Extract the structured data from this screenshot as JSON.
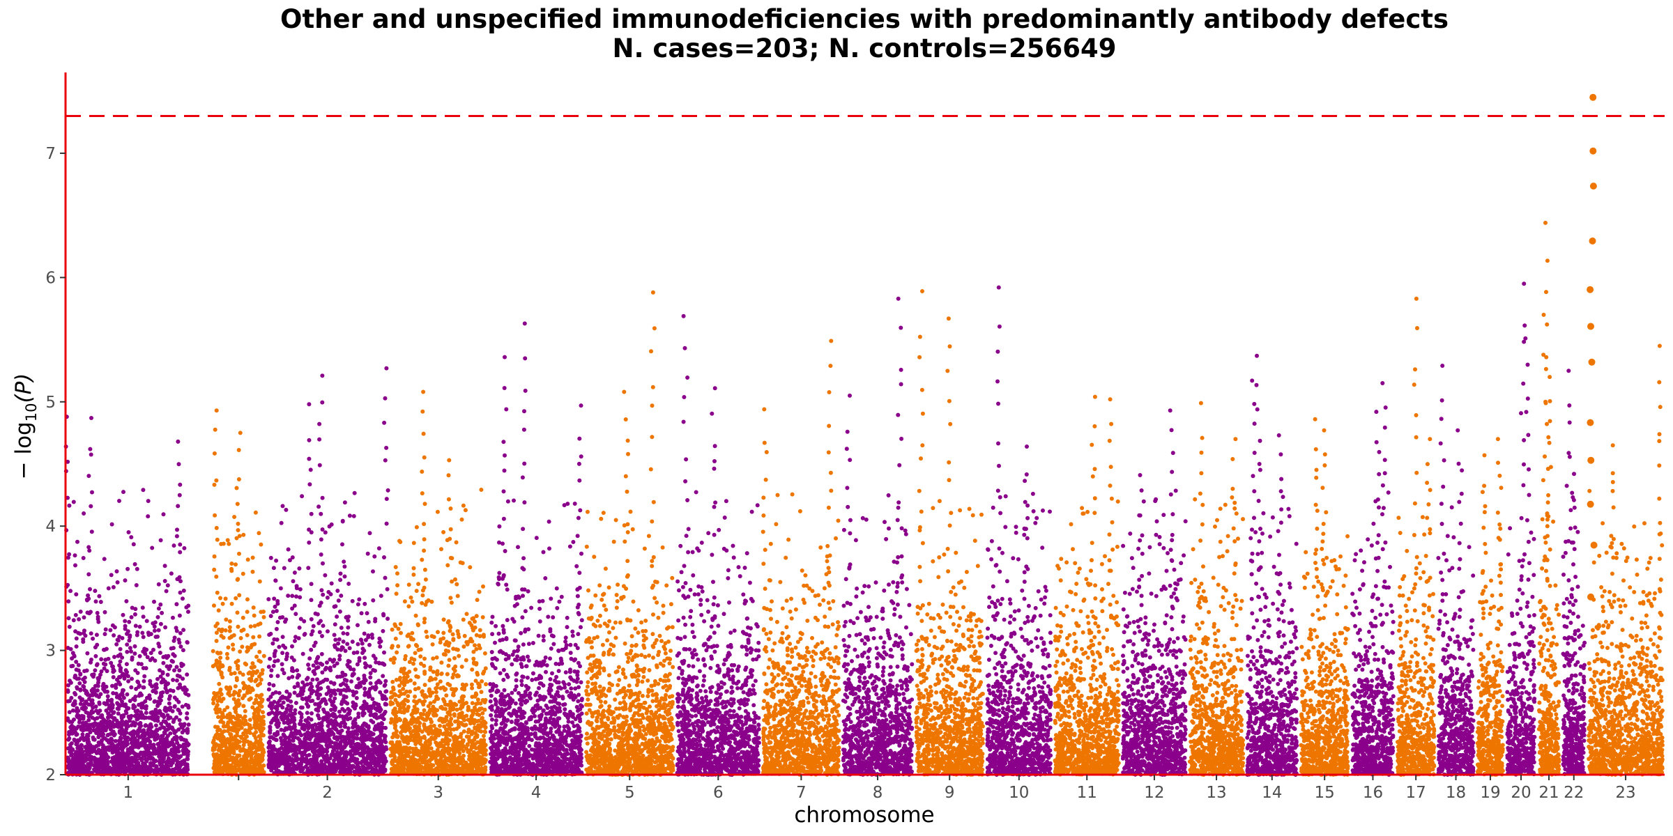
{
  "chart_data": {
    "type": "scatter",
    "subtype": "manhattan",
    "title": "Other and unspecified immunodeficiencies with predominantly antibody defects",
    "subtitle": "N. cases=203; N. controls=256649",
    "xlabel": "chromosome",
    "ylabel_prefix": "− log",
    "ylabel_sub": "10",
    "ylabel_suffix": "(P)",
    "ylim": [
      2,
      7.65
    ],
    "yticks": [
      "2",
      "3",
      "4",
      "5",
      "6",
      "7"
    ],
    "significance_line": 7.3,
    "grid": false,
    "colors": {
      "odd": "#8b008b",
      "even": "#ee7600",
      "threshold": "#e8000b",
      "axis": "#e8000b"
    },
    "chromosomes": [
      {
        "label": "1",
        "size": 249,
        "peaks": [
          {
            "pos": 0.02,
            "y": 4.88
          },
          {
            "pos": 0.2,
            "y": 4.87
          },
          {
            "pos": 0.9,
            "y": 4.68
          }
        ]
      },
      {
        "label": "",
        "size": 40,
        "gap": true
      },
      {
        "label": "",
        "size": 110,
        "peaks": [
          {
            "pos": 0.1,
            "y": 4.93
          },
          {
            "pos": 0.5,
            "y": 4.75
          }
        ]
      },
      {
        "label": "2",
        "size": 243,
        "peaks": [
          {
            "pos": 0.36,
            "y": 4.98
          },
          {
            "pos": 0.45,
            "y": 5.21
          },
          {
            "pos": 0.98,
            "y": 5.27
          }
        ]
      },
      {
        "label": "3",
        "size": 198,
        "peaks": [
          {
            "pos": 0.35,
            "y": 5.08
          },
          {
            "pos": 0.62,
            "y": 4.53
          }
        ]
      },
      {
        "label": "4",
        "size": 191,
        "peaks": [
          {
            "pos": 0.18,
            "y": 5.36
          },
          {
            "pos": 0.37,
            "y": 5.63
          },
          {
            "pos": 0.95,
            "y": 4.97
          }
        ]
      },
      {
        "label": "5",
        "size": 181,
        "peaks": [
          {
            "pos": 0.46,
            "y": 5.08
          },
          {
            "pos": 0.75,
            "y": 5.88
          }
        ]
      },
      {
        "label": "6",
        "size": 171,
        "peaks": [
          {
            "pos": 0.12,
            "y": 5.69
          },
          {
            "pos": 0.45,
            "y": 5.11
          }
        ]
      },
      {
        "label": "7",
        "size": 159,
        "peaks": [
          {
            "pos": 0.05,
            "y": 4.94
          },
          {
            "pos": 0.85,
            "y": 5.49
          }
        ]
      },
      {
        "label": "8",
        "size": 145,
        "peaks": [
          {
            "pos": 0.1,
            "y": 5.05
          },
          {
            "pos": 0.8,
            "y": 5.83
          }
        ]
      },
      {
        "label": "9",
        "size": 141,
        "peaks": [
          {
            "pos": 0.5,
            "y": 5.67
          },
          {
            "pos": 0.1,
            "y": 5.89
          }
        ]
      },
      {
        "label": "10",
        "size": 135,
        "peaks": [
          {
            "pos": 0.2,
            "y": 5.92
          },
          {
            "pos": 0.6,
            "y": 4.64
          }
        ]
      },
      {
        "label": "11",
        "size": 135,
        "peaks": [
          {
            "pos": 0.6,
            "y": 5.04
          },
          {
            "pos": 0.85,
            "y": 5.02
          }
        ]
      },
      {
        "label": "12",
        "size": 133,
        "peaks": [
          {
            "pos": 0.75,
            "y": 4.93
          },
          {
            "pos": 0.3,
            "y": 4.41
          }
        ]
      },
      {
        "label": "13",
        "size": 114,
        "peaks": [
          {
            "pos": 0.25,
            "y": 4.99
          },
          {
            "pos": 0.8,
            "y": 4.7
          }
        ]
      },
      {
        "label": "14",
        "size": 107,
        "peaks": [
          {
            "pos": 0.15,
            "y": 5.17
          },
          {
            "pos": 0.25,
            "y": 5.37
          },
          {
            "pos": 0.65,
            "y": 4.73
          }
        ]
      },
      {
        "label": "15",
        "size": 102,
        "peaks": [
          {
            "pos": 0.35,
            "y": 4.86
          },
          {
            "pos": 0.5,
            "y": 4.77
          }
        ]
      },
      {
        "label": "16",
        "size": 90,
        "peaks": [
          {
            "pos": 0.75,
            "y": 5.15
          },
          {
            "pos": 0.6,
            "y": 4.92
          }
        ]
      },
      {
        "label": "17",
        "size": 81,
        "peaks": [
          {
            "pos": 0.5,
            "y": 5.83
          },
          {
            "pos": 0.8,
            "y": 4.7
          }
        ]
      },
      {
        "label": "18",
        "size": 78,
        "peaks": [
          {
            "pos": 0.15,
            "y": 5.29
          },
          {
            "pos": 0.6,
            "y": 4.77
          }
        ]
      },
      {
        "label": "19",
        "size": 59,
        "peaks": [
          {
            "pos": 0.3,
            "y": 4.57
          },
          {
            "pos": 0.8,
            "y": 4.7
          }
        ]
      },
      {
        "label": "20",
        "size": 63,
        "peaks": [
          {
            "pos": 0.55,
            "y": 5.95
          },
          {
            "pos": 0.7,
            "y": 5.51
          }
        ]
      },
      {
        "label": "21",
        "size": 48,
        "peaks": [
          {
            "pos": 0.4,
            "y": 6.44
          },
          {
            "pos": 0.35,
            "y": 5.7
          },
          {
            "pos": 0.5,
            "y": 5.2
          }
        ]
      },
      {
        "label": "22",
        "size": 51,
        "peaks": [
          {
            "pos": 0.3,
            "y": 5.25
          },
          {
            "pos": 0.5,
            "y": 4.42
          }
        ]
      },
      {
        "label": "23",
        "size": 155,
        "peaks": [
          {
            "pos": 0.07,
            "y": 7.45
          },
          {
            "pos": 0.95,
            "y": 5.45
          },
          {
            "pos": 0.35,
            "y": 4.65
          }
        ]
      }
    ]
  }
}
